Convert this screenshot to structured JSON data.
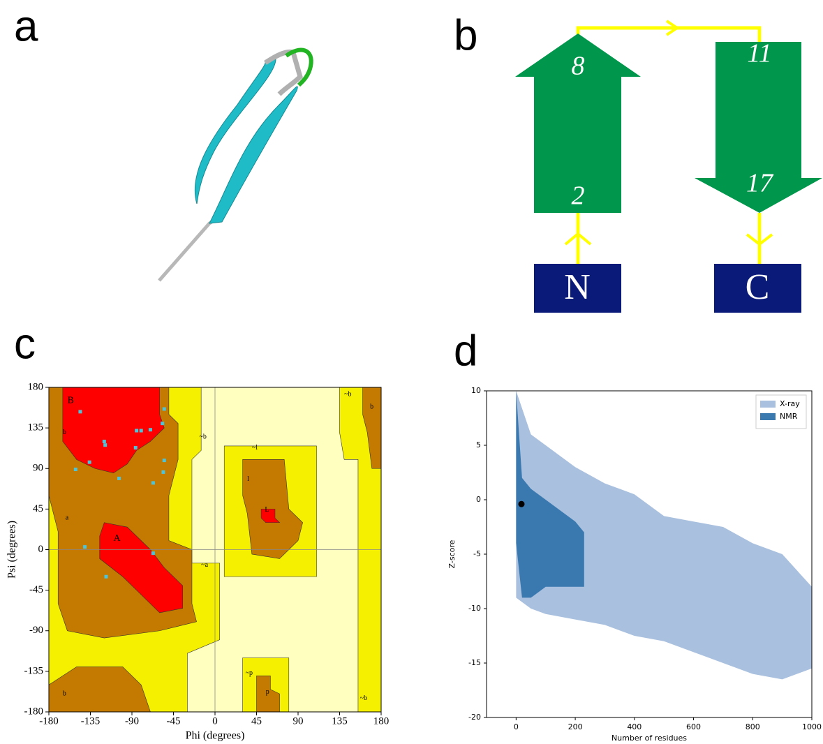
{
  "panels": {
    "a": {
      "label": "a"
    },
    "b": {
      "label": "b",
      "strands": [
        {
          "start": "2",
          "end": "8"
        },
        {
          "start": "11",
          "end": "17"
        }
      ],
      "termini": [
        "N",
        "C"
      ]
    }
  },
  "chart_data": [
    {
      "type": "ramachandran",
      "panel_label": "c",
      "xlabel": "Phi (degrees)",
      "ylabel": "Psi (degrees)",
      "xlim": [
        -180,
        180
      ],
      "ylim": [
        -180,
        180
      ],
      "xticks": [
        -180,
        -135,
        -90,
        -45,
        0,
        45,
        90,
        135,
        180
      ],
      "yticks": [
        -180,
        -135,
        -90,
        -45,
        0,
        45,
        90,
        135,
        180
      ],
      "region_labels": [
        "B",
        "b",
        "a",
        "A",
        "~b",
        "~a",
        "~l",
        "l",
        "L",
        "~p",
        "p",
        "~b",
        "b",
        "~b",
        "b"
      ],
      "color": "#4fc3d8",
      "x": [
        -146,
        -120,
        -119,
        -136,
        -151,
        -104,
        -85,
        -80,
        -70,
        -57,
        -55,
        -86,
        -55,
        -56,
        -67,
        -141,
        -118,
        -67
      ],
      "y": [
        153,
        120,
        116,
        97,
        89,
        79,
        132,
        132,
        133,
        140,
        156,
        113,
        99,
        86,
        74,
        3,
        -30,
        -4
      ]
    },
    {
      "type": "scatter",
      "panel_label": "d",
      "xlabel": "Number of residues",
      "ylabel": "Z-score",
      "xlim": [
        -100,
        1000
      ],
      "ylim": [
        -20,
        10
      ],
      "xticks": [
        0,
        200,
        400,
        600,
        800,
        1000
      ],
      "yticks": [
        -20,
        -15,
        -10,
        -5,
        0,
        5,
        10
      ],
      "legend": "upper right",
      "series": [
        {
          "name": "X-ray",
          "color": "#a9c0de",
          "x": [
            0,
            50,
            100,
            200,
            300,
            400,
            500,
            600,
            700,
            800,
            900,
            1000
          ],
          "upper": [
            10,
            6,
            5,
            3,
            1.5,
            0.5,
            -1.5,
            -2,
            -2.5,
            -4,
            -5,
            -8
          ],
          "lower": [
            -9,
            -10,
            -10.5,
            -11,
            -11.5,
            -12.5,
            -13,
            -14,
            -15,
            -16,
            -16.5,
            -15.5
          ]
        },
        {
          "name": "NMR",
          "color": "#3a78b0",
          "x": [
            0,
            20,
            50,
            100,
            200,
            230
          ],
          "upper": [
            10,
            2,
            1,
            0,
            -2,
            -3
          ],
          "lower": [
            -4,
            -9,
            -9,
            -8,
            -8,
            -8
          ]
        }
      ],
      "highlight": {
        "x": 18,
        "y": -0.4,
        "color": "#000000"
      }
    }
  ]
}
